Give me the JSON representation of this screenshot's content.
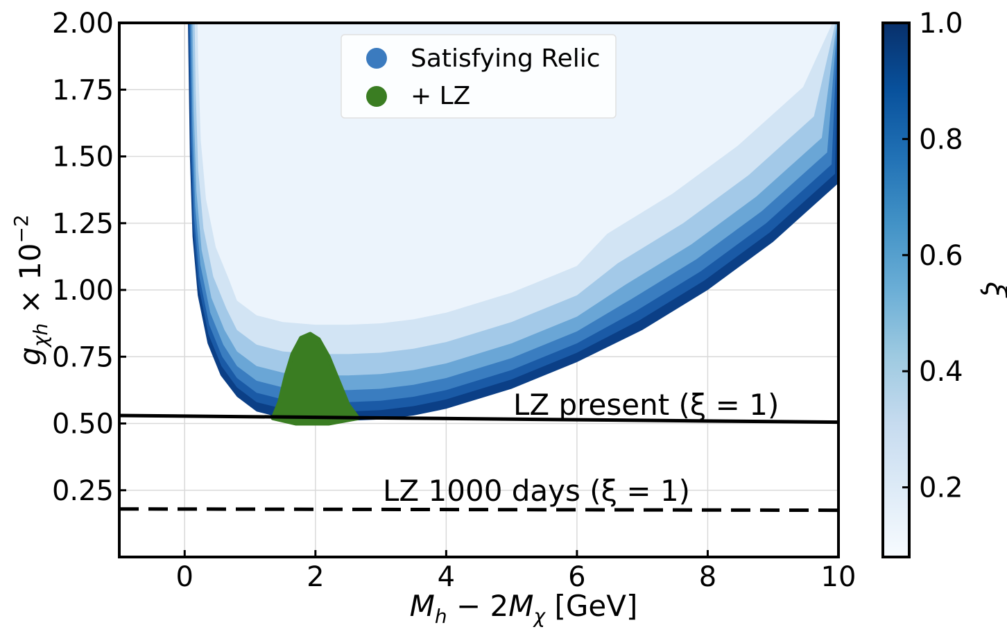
{
  "chart_data": {
    "type": "scatter",
    "title": "",
    "xlabel": "M_h − 2M_χ [GeV]",
    "ylabel": "g_χh × 10^−2",
    "xlim": [
      -1.0,
      10.0
    ],
    "ylim": [
      0.0,
      2.0
    ],
    "x_ticks": [
      0,
      2,
      4,
      6,
      8,
      10
    ],
    "y_ticks": [
      0.25,
      0.5,
      0.75,
      1.0,
      1.25,
      1.5,
      1.75,
      2.0
    ],
    "x_tick_labels": [
      "0",
      "2",
      "4",
      "6",
      "8",
      "10"
    ],
    "y_tick_labels": [
      "0.25",
      "0.50",
      "0.75",
      "1.00",
      "1.25",
      "1.50",
      "1.75",
      "2.00"
    ],
    "grid": true,
    "legend_position": "top-center",
    "series": [
      {
        "name": "Satisfying Relic",
        "color": "#3b7bbf",
        "lower_boundary": [
          {
            "x": 0.05,
            "y": 2.0
          },
          {
            "x": 0.08,
            "y": 1.5
          },
          {
            "x": 0.12,
            "y": 1.2
          },
          {
            "x": 0.2,
            "y": 0.98
          },
          {
            "x": 0.35,
            "y": 0.8
          },
          {
            "x": 0.55,
            "y": 0.68
          },
          {
            "x": 0.8,
            "y": 0.6
          },
          {
            "x": 1.1,
            "y": 0.545
          },
          {
            "x": 1.5,
            "y": 0.52
          },
          {
            "x": 2.0,
            "y": 0.51
          },
          {
            "x": 2.5,
            "y": 0.51
          },
          {
            "x": 3.0,
            "y": 0.515
          },
          {
            "x": 3.5,
            "y": 0.53
          },
          {
            "x": 4.0,
            "y": 0.555
          },
          {
            "x": 5.0,
            "y": 0.63
          },
          {
            "x": 6.0,
            "y": 0.73
          },
          {
            "x": 7.0,
            "y": 0.85
          },
          {
            "x": 8.0,
            "y": 1.0
          },
          {
            "x": 9.0,
            "y": 1.18
          },
          {
            "x": 10.0,
            "y": 1.4
          }
        ]
      },
      {
        "name": "+ LZ",
        "color": "#3a7d22",
        "region": [
          {
            "x": 1.35,
            "y": 0.52
          },
          {
            "x": 1.45,
            "y": 0.58
          },
          {
            "x": 1.55,
            "y": 0.68
          },
          {
            "x": 1.65,
            "y": 0.76
          },
          {
            "x": 1.78,
            "y": 0.82
          },
          {
            "x": 1.92,
            "y": 0.835
          },
          {
            "x": 2.05,
            "y": 0.815
          },
          {
            "x": 2.2,
            "y": 0.75
          },
          {
            "x": 2.35,
            "y": 0.66
          },
          {
            "x": 2.5,
            "y": 0.57
          },
          {
            "x": 2.65,
            "y": 0.52
          },
          {
            "x": 2.2,
            "y": 0.5
          },
          {
            "x": 1.7,
            "y": 0.5
          }
        ]
      }
    ],
    "lines": [
      {
        "name": "LZ present (ξ = 1)",
        "style": "solid",
        "points": [
          {
            "x": -1.0,
            "y": 0.53
          },
          {
            "x": 10.0,
            "y": 0.505
          }
        ]
      },
      {
        "name": "LZ 1000 days (ξ = 1)",
        "style": "dashed",
        "points": [
          {
            "x": -1.0,
            "y": 0.18
          },
          {
            "x": 10.0,
            "y": 0.175
          }
        ]
      }
    ],
    "annotations": [
      "LZ present (ξ = 1)",
      "LZ 1000 days (ξ = 1)"
    ],
    "colorbar": {
      "label": "ξ",
      "range": [
        0.08,
        1.0
      ],
      "ticks": [
        0.2,
        0.4,
        0.6,
        0.8,
        1.0
      ],
      "tick_labels": [
        "0.2",
        "0.4",
        "0.6",
        "0.8",
        "1.0"
      ],
      "colormap": [
        "#f7fbff",
        "#deebf7",
        "#c6dbef",
        "#9ecae1",
        "#6baed6",
        "#4292c6",
        "#2171b5",
        "#08519c",
        "#08306b"
      ]
    }
  },
  "legend": {
    "items": [
      {
        "label": "Satisfying Relic",
        "color": "#3b7bbf"
      },
      {
        "label": "+ LZ",
        "color": "#3a7d22"
      }
    ]
  },
  "annotation_text": {
    "present": "LZ present (ξ = 1)",
    "future": "LZ 1000 days (ξ = 1)"
  }
}
